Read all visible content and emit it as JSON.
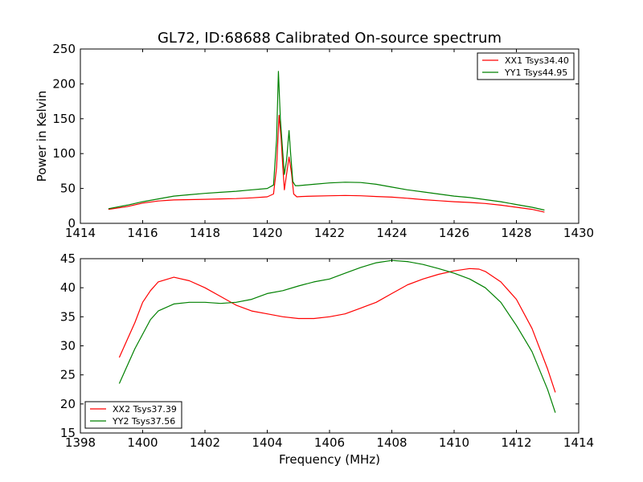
{
  "title": "GL72, ID:68688 Calibrated On-source spectrum",
  "chart_data": [
    {
      "type": "line",
      "ylabel": "Power in Kelvin",
      "xlabel": "",
      "xlim": [
        1414,
        1430
      ],
      "ylim": [
        0,
        250
      ],
      "xticks": [
        1414,
        1416,
        1418,
        1420,
        1422,
        1424,
        1426,
        1428,
        1430
      ],
      "yticks": [
        0,
        50,
        100,
        150,
        200,
        250
      ],
      "legend_position": "top-right",
      "series": [
        {
          "name": "XX1 Tsys34.40",
          "color": "#ff0000",
          "x": [
            1414.9,
            1415.5,
            1416.0,
            1416.5,
            1417.0,
            1417.5,
            1418.0,
            1418.5,
            1419.0,
            1419.5,
            1420.0,
            1420.2,
            1420.3,
            1420.38,
            1420.45,
            1420.5,
            1420.55,
            1420.62,
            1420.7,
            1420.78,
            1420.85,
            1420.95,
            1421.1,
            1421.5,
            1422.0,
            1422.5,
            1423.0,
            1423.5,
            1424.0,
            1424.5,
            1425.0,
            1425.5,
            1426.0,
            1426.5,
            1427.0,
            1427.5,
            1428.0,
            1428.5,
            1428.9
          ],
          "y": [
            20,
            24,
            29,
            32,
            33.5,
            34,
            34.5,
            35,
            35.5,
            36.5,
            38,
            42,
            80,
            155,
            120,
            80,
            48,
            70,
            95,
            72,
            42,
            38,
            38.5,
            39,
            39.5,
            40,
            39.5,
            38.5,
            37.5,
            36,
            34,
            32.5,
            31,
            30,
            28.5,
            26,
            23,
            20,
            16
          ]
        },
        {
          "name": "YY1 Tsys44.95",
          "color": "#008000",
          "x": [
            1414.9,
            1415.5,
            1416.0,
            1416.5,
            1417.0,
            1417.5,
            1418.0,
            1418.5,
            1419.0,
            1419.5,
            1420.0,
            1420.2,
            1420.3,
            1420.36,
            1420.42,
            1420.5,
            1420.55,
            1420.62,
            1420.7,
            1420.75,
            1420.82,
            1420.9,
            1421.0,
            1421.5,
            1422.0,
            1422.5,
            1423.0,
            1423.5,
            1424.0,
            1424.5,
            1425.0,
            1425.5,
            1426.0,
            1426.5,
            1427.0,
            1427.5,
            1428.0,
            1428.5,
            1428.9
          ],
          "y": [
            21,
            26,
            31,
            35,
            39,
            41,
            43,
            44.5,
            46,
            48,
            50,
            55,
            120,
            218,
            150,
            100,
            70,
            90,
            133,
            100,
            60,
            54,
            54,
            56,
            58,
            59,
            58.5,
            56,
            52,
            48,
            45,
            42,
            39,
            37,
            34,
            31,
            27,
            23,
            19
          ]
        }
      ]
    },
    {
      "type": "line",
      "ylabel": "",
      "xlabel": "Frequency (MHz)",
      "xlim": [
        1398,
        1414
      ],
      "ylim": [
        15,
        45
      ],
      "xticks": [
        1398,
        1400,
        1402,
        1404,
        1406,
        1408,
        1410,
        1412,
        1414
      ],
      "yticks": [
        15,
        20,
        25,
        30,
        35,
        40,
        45
      ],
      "legend_position": "bottom-left",
      "series": [
        {
          "name": "XX2 Tsys37.39",
          "color": "#ff0000",
          "x": [
            1399.25,
            1399.5,
            1399.75,
            1400.0,
            1400.25,
            1400.5,
            1401.0,
            1401.5,
            1402.0,
            1402.5,
            1403.0,
            1403.5,
            1404.0,
            1404.5,
            1405.0,
            1405.5,
            1406.0,
            1406.5,
            1407.0,
            1407.5,
            1408.0,
            1408.5,
            1409.0,
            1409.5,
            1410.0,
            1410.5,
            1410.8,
            1411.0,
            1411.5,
            1412.0,
            1412.5,
            1413.0,
            1413.25
          ],
          "y": [
            28,
            31,
            34,
            37.5,
            39.5,
            41,
            41.8,
            41.2,
            40,
            38.5,
            37,
            36,
            35.5,
            35,
            34.7,
            34.7,
            35,
            35.5,
            36.5,
            37.5,
            39,
            40.5,
            41.5,
            42.3,
            42.9,
            43.3,
            43.2,
            42.8,
            41,
            38,
            33,
            26,
            22
          ]
        },
        {
          "name": "YY2 Tsys37.56",
          "color": "#008000",
          "x": [
            1399.25,
            1399.5,
            1399.75,
            1400.0,
            1400.25,
            1400.5,
            1401.0,
            1401.5,
            1402.0,
            1402.5,
            1403.0,
            1403.5,
            1404.0,
            1404.5,
            1405.0,
            1405.5,
            1406.0,
            1406.5,
            1407.0,
            1407.5,
            1408.0,
            1408.5,
            1409.0,
            1409.5,
            1410.0,
            1410.5,
            1411.0,
            1411.5,
            1412.0,
            1412.5,
            1413.0,
            1413.25
          ],
          "y": [
            23.5,
            26.5,
            29.5,
            32,
            34.5,
            36,
            37.2,
            37.5,
            37.5,
            37.3,
            37.5,
            38,
            39,
            39.5,
            40.3,
            41,
            41.5,
            42.5,
            43.5,
            44.3,
            44.7,
            44.5,
            44,
            43.3,
            42.5,
            41.5,
            40,
            37.5,
            33.5,
            29,
            22.5,
            18.5
          ]
        }
      ]
    }
  ]
}
